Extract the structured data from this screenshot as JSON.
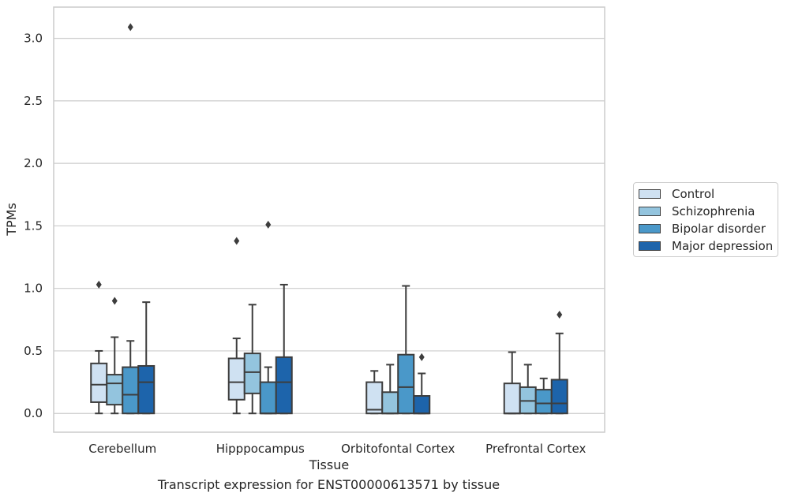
{
  "caption": "Transcript expression for ENST00000613571 by tissue",
  "colors": {
    "grid": "#cccccc",
    "frame": "#cccccc",
    "box_edge": "#3d3d3d",
    "series": [
      "#cfe1f2",
      "#93c4de",
      "#4a98c9",
      "#1d64ab"
    ]
  },
  "legend": {
    "placement": "right",
    "items": [
      {
        "label": "Control",
        "color": "#cfe1f2"
      },
      {
        "label": "Schizophrenia",
        "color": "#93c4de"
      },
      {
        "label": "Bipolar disorder",
        "color": "#4a98c9"
      },
      {
        "label": "Major depression",
        "color": "#1d64ab"
      }
    ]
  },
  "chart_data": {
    "type": "box",
    "title": "",
    "xlabel": "Tissue",
    "ylabel": "TPMs",
    "ylim": [
      -0.15,
      3.25
    ],
    "yticks": [
      "0.0",
      "0.5",
      "1.0",
      "1.5",
      "2.0",
      "2.5",
      "3.0"
    ],
    "grid": true,
    "categories": [
      "Cerebellum",
      "Hipppocampus",
      "Orbitofontal Cortex",
      "Prefrontal Cortex"
    ],
    "series": [
      {
        "name": "Control",
        "boxes": [
          {
            "whislo": 0.0,
            "q1": 0.09,
            "med": 0.23,
            "q3": 0.4,
            "whishi": 0.5,
            "fliers": [
              1.03
            ]
          },
          {
            "whislo": 0.0,
            "q1": 0.11,
            "med": 0.25,
            "q3": 0.44,
            "whishi": 0.6,
            "fliers": [
              1.38
            ]
          },
          {
            "whislo": 0.0,
            "q1": 0.0,
            "med": 0.03,
            "q3": 0.25,
            "whishi": 0.34,
            "fliers": []
          },
          {
            "whislo": 0.0,
            "q1": 0.0,
            "med": 0.0,
            "q3": 0.24,
            "whishi": 0.49,
            "fliers": []
          }
        ]
      },
      {
        "name": "Schizophrenia",
        "boxes": [
          {
            "whislo": 0.0,
            "q1": 0.07,
            "med": 0.24,
            "q3": 0.31,
            "whishi": 0.61,
            "fliers": [
              0.9
            ]
          },
          {
            "whislo": 0.0,
            "q1": 0.16,
            "med": 0.33,
            "q3": 0.48,
            "whishi": 0.87,
            "fliers": []
          },
          {
            "whislo": 0.0,
            "q1": 0.0,
            "med": 0.0,
            "q3": 0.17,
            "whishi": 0.39,
            "fliers": []
          },
          {
            "whislo": 0.0,
            "q1": 0.0,
            "med": 0.1,
            "q3": 0.21,
            "whishi": 0.39,
            "fliers": []
          }
        ]
      },
      {
        "name": "Bipolar disorder",
        "boxes": [
          {
            "whislo": 0.0,
            "q1": 0.0,
            "med": 0.15,
            "q3": 0.37,
            "whishi": 0.58,
            "fliers": [
              3.09
            ]
          },
          {
            "whislo": 0.0,
            "q1": 0.0,
            "med": 0.0,
            "q3": 0.25,
            "whishi": 0.37,
            "fliers": [
              1.51
            ]
          },
          {
            "whislo": 0.0,
            "q1": 0.0,
            "med": 0.21,
            "q3": 0.47,
            "whishi": 1.02,
            "fliers": []
          },
          {
            "whislo": 0.0,
            "q1": 0.0,
            "med": 0.08,
            "q3": 0.19,
            "whishi": 0.28,
            "fliers": []
          }
        ]
      },
      {
        "name": "Major depression",
        "boxes": [
          {
            "whislo": 0.0,
            "q1": 0.0,
            "med": 0.25,
            "q3": 0.38,
            "whishi": 0.89,
            "fliers": []
          },
          {
            "whislo": 0.0,
            "q1": 0.0,
            "med": 0.25,
            "q3": 0.45,
            "whishi": 1.03,
            "fliers": []
          },
          {
            "whislo": 0.0,
            "q1": 0.0,
            "med": 0.0,
            "q3": 0.14,
            "whishi": 0.32,
            "fliers": [
              0.45
            ]
          },
          {
            "whislo": 0.0,
            "q1": 0.0,
            "med": 0.08,
            "q3": 0.27,
            "whishi": 0.64,
            "fliers": [
              0.79
            ]
          }
        ]
      }
    ]
  }
}
